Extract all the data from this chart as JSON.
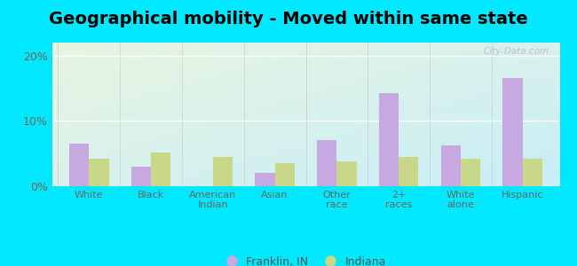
{
  "title": "Geographical mobility - Moved within same state",
  "categories": [
    "White",
    "Black",
    "American\nIndian",
    "Asian",
    "Other\nrace",
    "2+\nraces",
    "White\nalone",
    "Hispanic"
  ],
  "franklin_values": [
    6.5,
    3.0,
    0.0,
    2.0,
    7.0,
    14.2,
    6.2,
    16.5
  ],
  "indiana_values": [
    4.2,
    5.2,
    4.5,
    3.5,
    3.8,
    4.5,
    4.2,
    4.2
  ],
  "franklin_color": "#c8a8e0",
  "indiana_color": "#c8d888",
  "background_outer": "#00e8ff",
  "background_inner_top_left": "#e8f5e0",
  "background_inner_bottom_right": "#c8eef8",
  "ylim": [
    0,
    22
  ],
  "yticks": [
    0,
    10,
    20
  ],
  "ytick_labels": [
    "0%",
    "10%",
    "20%"
  ],
  "legend_franklin": "Franklin, IN",
  "legend_indiana": "Indiana",
  "bar_width": 0.32,
  "title_fontsize": 14,
  "watermark": "City-Data.com"
}
